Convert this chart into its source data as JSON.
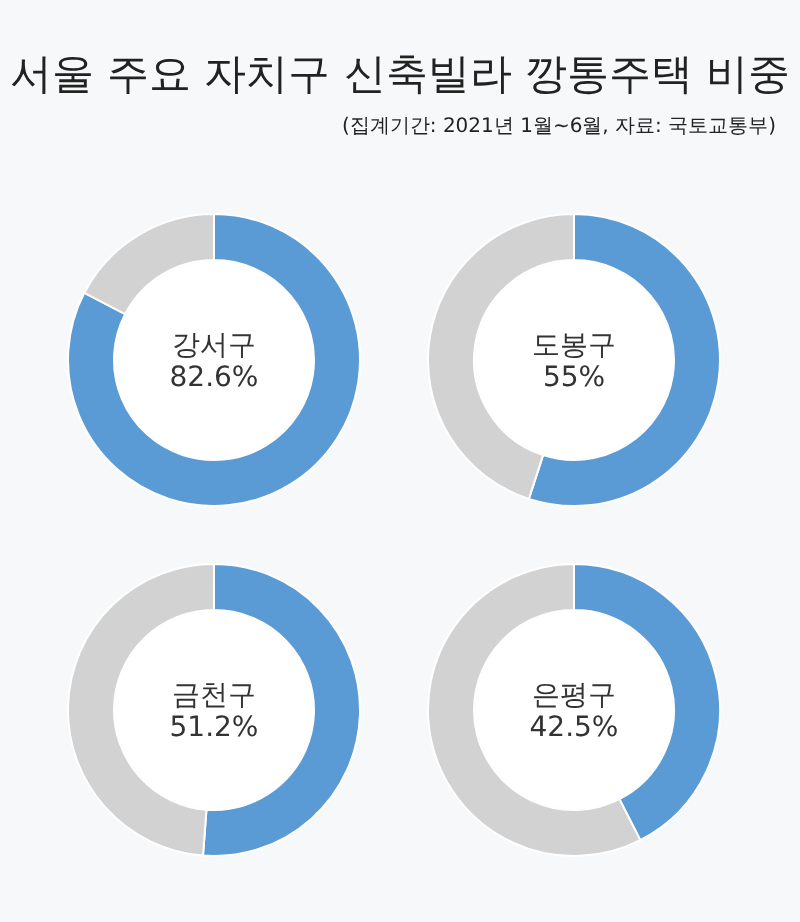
{
  "chart_data": [
    {
      "type": "donut",
      "title": "서울 주요 자치구 신축빌라 깡통주택 비중",
      "categories": [
        "강서구",
        null
      ],
      "values": [
        82.6,
        17.4
      ],
      "colors": [
        "#5b9bd5",
        "#d3d2d3"
      ],
      "value_labels": [
        "82.6%",
        null
      ]
    },
    {
      "type": "donut",
      "subtitle": "(집계기간: 2021년 1월~6월, 자료: 국토교통부)",
      "categories": [
        "도봉구",
        null
      ],
      "values": [
        55,
        45
      ],
      "colors": [
        "#5b9bd5",
        "#d3d2d3"
      ],
      "value_labels": [
        "55%",
        null
      ]
    },
    {
      "type": "donut",
      "categories": [
        "금천구",
        null
      ],
      "values": [
        51.2,
        48.8
      ],
      "colors": [
        "#5b9bd5",
        "#d3d2d3"
      ],
      "value_labels": [
        "51.2%",
        null
      ]
    },
    {
      "type": "donut",
      "categories": [
        "은평구",
        null
      ],
      "values": [
        42.5,
        57.5
      ],
      "colors": [
        "#5b9bd5",
        "#d3d2d3"
      ],
      "value_labels": [
        "42.5%",
        null
      ]
    }
  ]
}
